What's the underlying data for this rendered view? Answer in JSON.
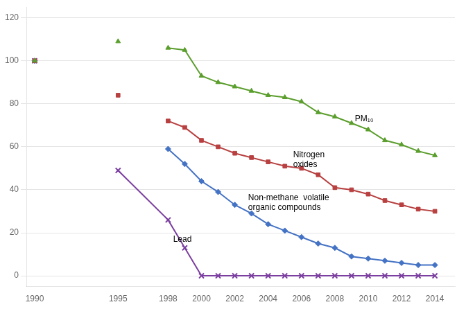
{
  "chart_data": {
    "type": "line",
    "xlim": [
      1989.5,
      2015.2
    ],
    "ylim": [
      -5,
      125
    ],
    "xticks": [
      1990,
      1995,
      1998,
      2000,
      2002,
      2004,
      2006,
      2008,
      2010,
      2012,
      2014
    ],
    "yticks": [
      0,
      20,
      40,
      60,
      80,
      100,
      120
    ],
    "grid": "y",
    "series": [
      {
        "color": "#5b9e2d",
        "marker": "triangle",
        "x": [
          1990,
          null,
          1995,
          null,
          1998,
          1999,
          2000,
          2001,
          2002,
          2003,
          2004,
          2005,
          2006,
          2007,
          2008,
          2009,
          2010,
          2011,
          2012,
          2013,
          2014
        ],
        "values": [
          100,
          null,
          109,
          null,
          106,
          105,
          93,
          90,
          88,
          86,
          84,
          83,
          81,
          76,
          74,
          71,
          68,
          63,
          61,
          58,
          56
        ]
      },
      {
        "color": "#b84040",
        "marker": "square",
        "x": [
          1990,
          null,
          1995,
          null,
          1998,
          1999,
          2000,
          2001,
          2002,
          2003,
          2004,
          2005,
          2006,
          2007,
          2008,
          2009,
          2010,
          2011,
          2012,
          2013,
          2014
        ],
        "values": [
          100,
          null,
          84,
          null,
          72,
          69,
          63,
          60,
          57,
          55,
          53,
          51,
          50,
          47,
          41,
          40,
          38,
          35,
          33,
          31,
          30
        ]
      },
      {
        "color": "#4472c4",
        "marker": "diamond",
        "x": [
          1990,
          null,
          1998,
          1999,
          2000,
          2001,
          2002,
          2003,
          2004,
          2005,
          2006,
          2007,
          2008,
          2009,
          2010,
          2011,
          2012,
          2013,
          2014
        ],
        "values": [
          100,
          null,
          59,
          52,
          44,
          39,
          33,
          29,
          24,
          21,
          18,
          15,
          13,
          9,
          8,
          7,
          6,
          5,
          5
        ]
      },
      {
        "color": "#7b3fa0",
        "marker": "x",
        "x": [
          1990,
          null,
          1995,
          1998,
          1999,
          2000,
          2001,
          2002,
          2003,
          2004,
          2005,
          2006,
          2007,
          2008,
          2009,
          2010,
          2011,
          2012,
          2013,
          2014
        ],
        "values": [
          100,
          null,
          49,
          26,
          13,
          0,
          0,
          0,
          0,
          0,
          0,
          0,
          0,
          0,
          0,
          0,
          0,
          0,
          0,
          0
        ]
      }
    ],
    "annotations": [
      {
        "text": "PM₁₀",
        "x": 2009.2,
        "y": 73
      },
      {
        "text": "Nitrogen\noxides",
        "x": 2005.5,
        "y": 54
      },
      {
        "text": "Non-methane  volatile\norganic compounds",
        "x": 2002.8,
        "y": 34
      },
      {
        "text": "Lead",
        "x": 1998.3,
        "y": 17
      }
    ]
  }
}
